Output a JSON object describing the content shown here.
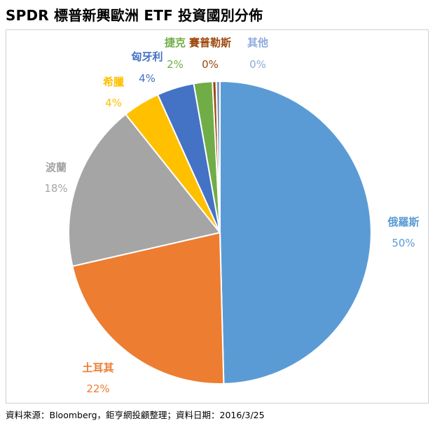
{
  "page": {
    "title": "SPDR 標普新興歐洲 ETF 投資國別分佈",
    "source": "資料來源：Bloomberg，鉅亨網投顧整理；資料日期：2016/3/25"
  },
  "chart_data": {
    "type": "pie",
    "title": "SPDR 標普新興歐洲 ETF 投資國別分佈",
    "slices": [
      {
        "label": "俄羅斯",
        "value": 50,
        "pct_label": "50%",
        "color": "#5B9BD5"
      },
      {
        "label": "土耳其",
        "value": 22,
        "pct_label": "22%",
        "color": "#ED7D31"
      },
      {
        "label": "波蘭",
        "value": 18,
        "pct_label": "18%",
        "color": "#A5A5A5"
      },
      {
        "label": "希臘",
        "value": 4,
        "pct_label": "4%",
        "color": "#FFC000"
      },
      {
        "label": "匈牙利",
        "value": 4,
        "pct_label": "4%",
        "color": "#4472C4"
      },
      {
        "label": "捷克",
        "value": 2,
        "pct_label": "2%",
        "color": "#70AD47"
      },
      {
        "label": "賽普勒斯",
        "value": 0.4,
        "pct_label": "0%",
        "color": "#9E480E"
      },
      {
        "label": "其他",
        "value": 0.4,
        "pct_label": "0%",
        "color": "#7F9FC5"
      }
    ],
    "label_colors": {
      "俄羅斯": "#5B9BD5",
      "土耳其": "#ED7D31",
      "波蘭": "#A5A5A5",
      "希臘": "#FFC000",
      "匈牙利": "#4472C4",
      "捷克": "#70AD47",
      "賽普勒斯": "#9E480E",
      "其他": "#8FAADC"
    },
    "start_angle": "12 o'clock",
    "direction": "clockwise",
    "legend": "none (data labels outside)"
  }
}
